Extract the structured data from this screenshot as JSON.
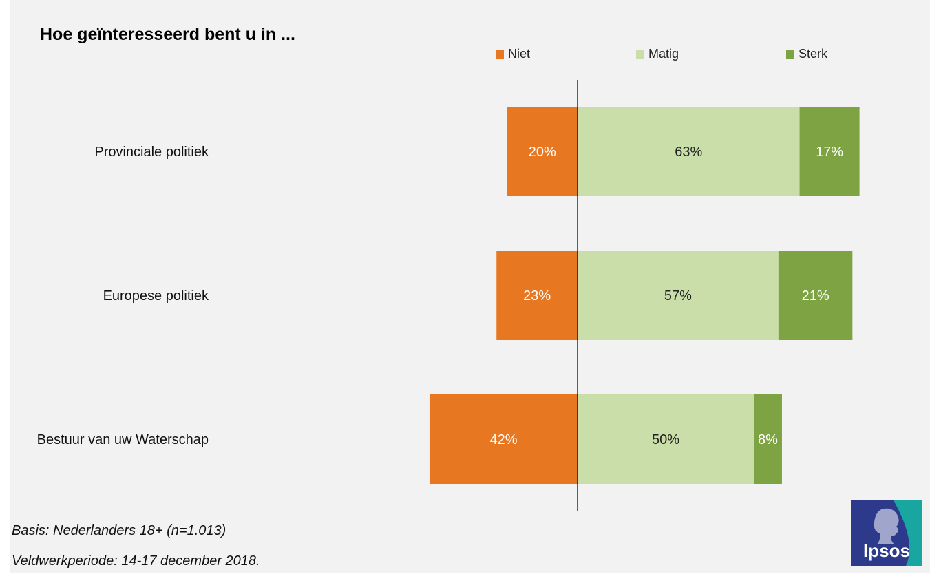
{
  "title": "Hoe geïnteresseerd bent u in ...",
  "chart_data": {
    "type": "bar",
    "orientation": "horizontal-diverging",
    "categories": [
      "Provinciale politiek",
      "Europese politiek",
      "Bestuur van uw Waterschap"
    ],
    "series": [
      {
        "name": "Niet",
        "values": [
          20,
          23,
          42
        ],
        "color": "#e87722",
        "label_color": "#ffffff",
        "direction": "negative"
      },
      {
        "name": "Matig",
        "values": [
          63,
          57,
          50
        ],
        "color": "#c9dea8",
        "label_color": "#222222",
        "direction": "positive"
      },
      {
        "name": "Sterk",
        "values": [
          17,
          21,
          8
        ],
        "color": "#7da342",
        "label_color": "#ffffff",
        "direction": "positive"
      }
    ],
    "value_suffix": "%",
    "legend_position": "top-right",
    "grid": false
  },
  "legend": {
    "niet": "Niet",
    "matig": "Matig",
    "sterk": "Sterk"
  },
  "footnotes": {
    "basis": "Basis: Nederlanders 18+ (n=1.013)",
    "veldwerk": "Veldwerkperiode: 14-17 december 2018."
  },
  "logo": {
    "text": "Ipsos",
    "color": "#2d3a8c",
    "accent": "#1aa6a0"
  }
}
